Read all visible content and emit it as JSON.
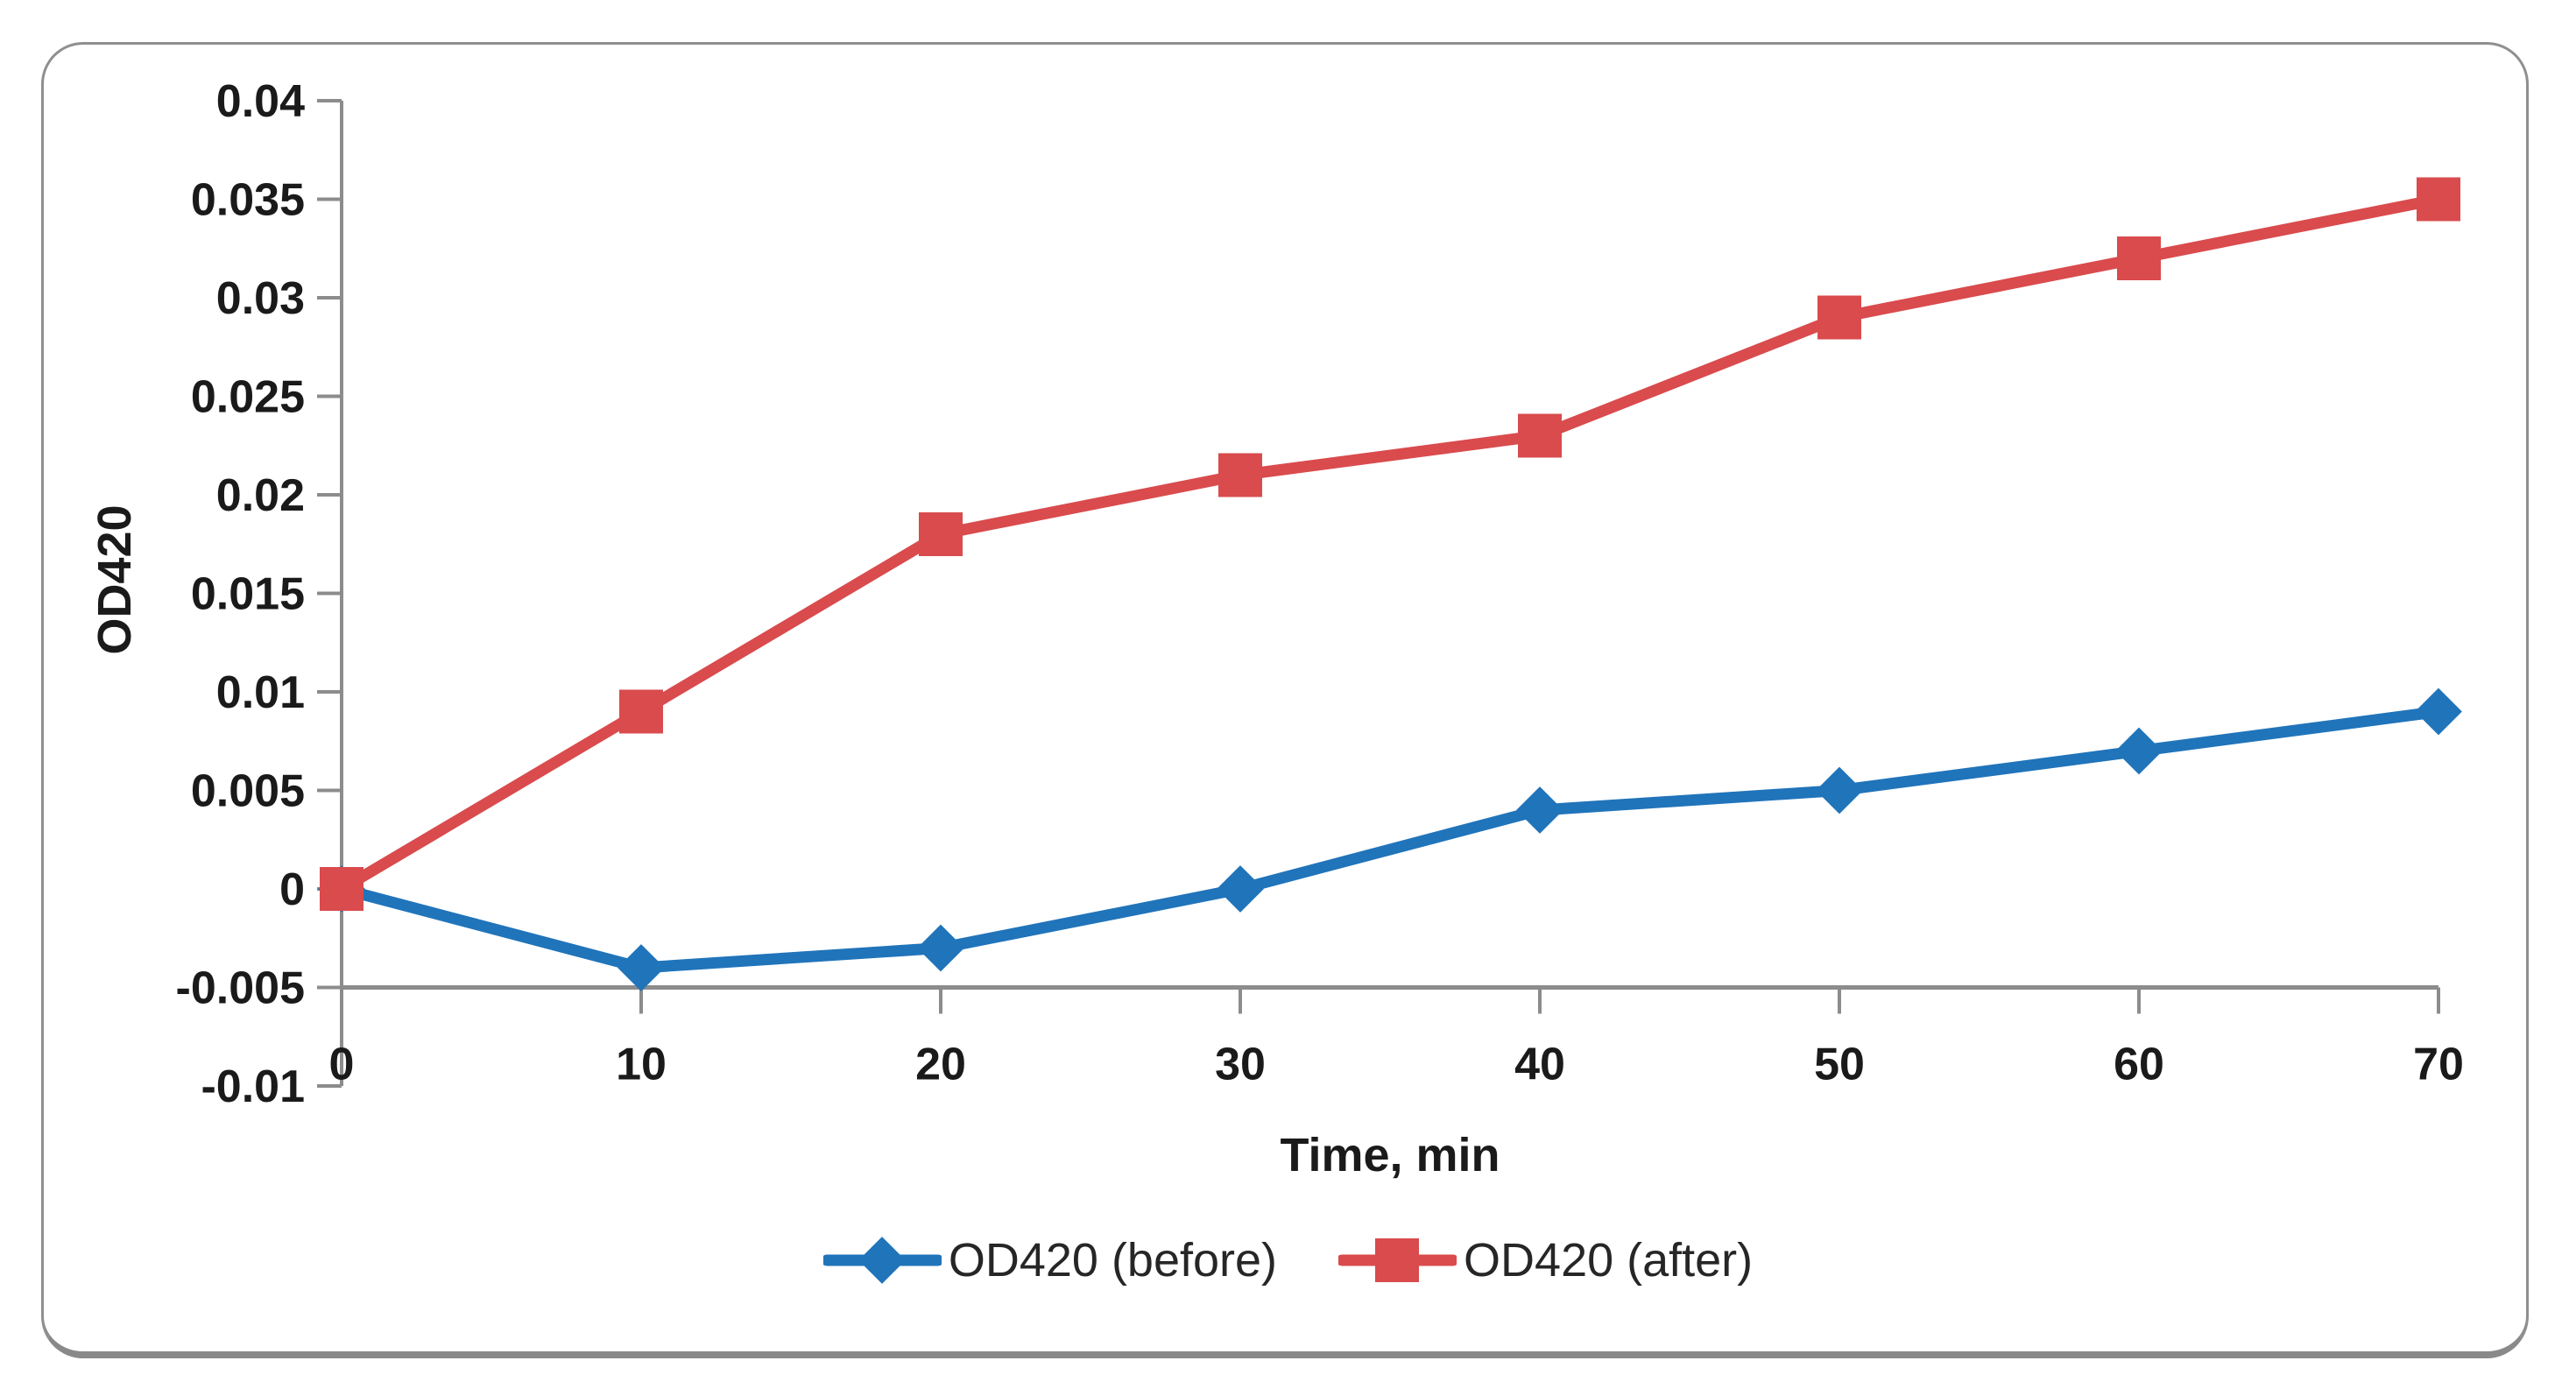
{
  "chart_data": {
    "type": "line",
    "x": [
      0,
      10,
      20,
      30,
      40,
      50,
      60,
      70
    ],
    "x_tick_labels": [
      "0",
      "10",
      "20",
      "30",
      "40",
      "50",
      "60",
      "70"
    ],
    "y_tick_labels": [
      "0.04",
      "0.035",
      "0.03",
      "0.025",
      "0.02",
      "0.015",
      "0.01",
      "0.005",
      "0",
      "-0.005",
      "-0.01"
    ],
    "xlabel": "Time, min",
    "ylabel": "OD420",
    "ylim": [
      -0.01,
      0.04
    ],
    "xlim": [
      0,
      70
    ],
    "x_axis_crosses_at": -0.005,
    "grid": false,
    "legend_position": "bottom-center",
    "series": [
      {
        "name": "OD420 (before)",
        "color": "#2074BA",
        "marker": "diamond",
        "values": [
          0,
          -0.004,
          -0.003,
          0,
          0.004,
          0.005,
          0.007,
          0.009
        ]
      },
      {
        "name": "OD420 (after)",
        "color": "#D94B4D",
        "marker": "square",
        "values": [
          0,
          0.009,
          0.018,
          0.021,
          0.023,
          0.029,
          0.032,
          0.035
        ]
      }
    ]
  },
  "style_colors": {
    "axis_line": "#8C8C8C",
    "tick_label": "#1A1A1A",
    "frame_border": "#8F8F8F",
    "background": "#FFFFFF"
  }
}
